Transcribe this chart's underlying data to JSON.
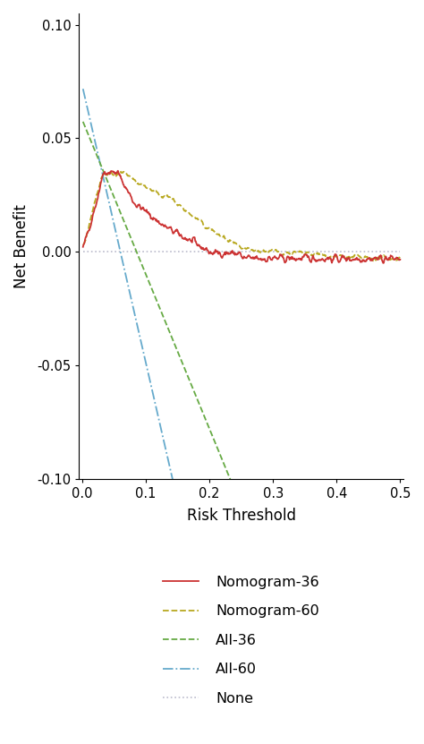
{
  "xlabel": "Risk Threshold",
  "ylabel": "Net Benefit",
  "xlim": [
    -0.005,
    0.505
  ],
  "ylim": [
    -0.1,
    0.105
  ],
  "yticks": [
    -0.1,
    -0.05,
    0.0,
    0.05,
    0.1
  ],
  "xticks": [
    0.0,
    0.1,
    0.2,
    0.3,
    0.4,
    0.5
  ],
  "xtick_labels": [
    "0.0",
    "0.1",
    "0.2",
    "0.3",
    "0.4",
    "0.5"
  ],
  "ytick_labels": [
    "-0.10",
    "-0.05",
    "0.00",
    "0.05",
    "0.10"
  ],
  "background_color": "#ffffff",
  "legend_entries": [
    {
      "label": "Nomogram-36",
      "color": "#cc3333",
      "linestyle": "solid",
      "linewidth": 1.3
    },
    {
      "label": "Nomogram-60",
      "color": "#b8a820",
      "linestyle": "dashed",
      "linewidth": 1.3
    },
    {
      "label": "All-36",
      "color": "#66aa44",
      "linestyle": "dashed",
      "linewidth": 1.3
    },
    {
      "label": "All-60",
      "color": "#66aacc",
      "linestyle": "dashdot",
      "linewidth": 1.3
    },
    {
      "label": "None",
      "color": "#bbbbcc",
      "linestyle": "dotted",
      "linewidth": 1.2
    }
  ]
}
